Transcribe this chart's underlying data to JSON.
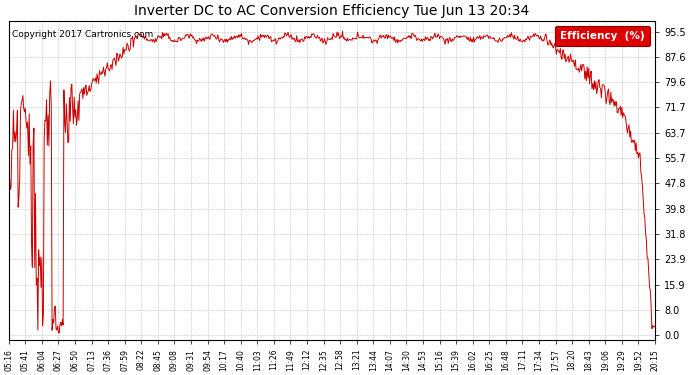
{
  "title": "Inverter DC to AC Conversion Efficiency Tue Jun 13 20:34",
  "copyright": "Copyright 2017 Cartronics.com",
  "legend_label": "Efficiency  (%)",
  "legend_bg": "#dd0000",
  "legend_text_color": "#ffffff",
  "line_color": "#cc0000",
  "background_color": "#ffffff",
  "grid_color": "#bbbbbb",
  "yticks": [
    0.0,
    8.0,
    15.9,
    23.9,
    31.8,
    39.8,
    47.8,
    55.7,
    63.7,
    71.7,
    79.6,
    87.6,
    95.5
  ],
  "ylim": [
    -1.5,
    99
  ],
  "xtick_labels": [
    "05:16",
    "05:41",
    "06:04",
    "06:27",
    "06:50",
    "07:13",
    "07:36",
    "07:59",
    "08:22",
    "08:45",
    "09:08",
    "09:31",
    "09:54",
    "10:17",
    "10:40",
    "11:03",
    "11:26",
    "11:49",
    "12:12",
    "12:35",
    "12:58",
    "13:21",
    "13:44",
    "14:07",
    "14:30",
    "14:53",
    "15:16",
    "15:39",
    "16:02",
    "16:25",
    "16:48",
    "17:11",
    "17:34",
    "17:57",
    "18:20",
    "18:43",
    "19:06",
    "19:29",
    "19:52",
    "20:15"
  ],
  "figsize": [
    6.9,
    3.75
  ],
  "dpi": 100
}
